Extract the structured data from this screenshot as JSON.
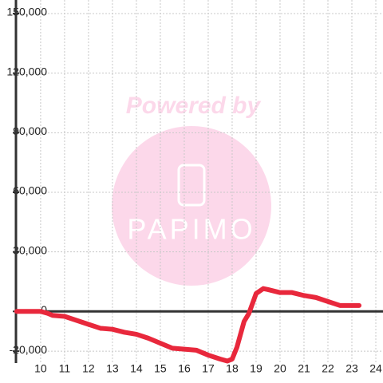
{
  "chart_data": {
    "type": "line",
    "watermark": {
      "line1": "Powered by",
      "line2": "PAPIMO"
    },
    "x": [
      9.0,
      10.0,
      10.3,
      10.5,
      11.0,
      11.5,
      12.0,
      12.5,
      13.0,
      13.5,
      14.0,
      14.5,
      15.0,
      15.5,
      16.0,
      16.5,
      17.0,
      17.5,
      17.8,
      18.0,
      18.2,
      18.5,
      18.7,
      19.0,
      19.3,
      19.5,
      20.0,
      20.5,
      21.0,
      21.5,
      22.0,
      22.5,
      23.0,
      23.3
    ],
    "series": [
      {
        "color": "#e8283c",
        "values": [
          0,
          0,
          -1000,
          -2000,
          -2500,
          -4500,
          -6500,
          -8500,
          -9000,
          -10500,
          -11500,
          -13500,
          -16000,
          -18500,
          -19000,
          -19500,
          -22000,
          -24000,
          -25000,
          -24000,
          -18000,
          -5000,
          -1000,
          9000,
          11500,
          11000,
          9500,
          9500,
          8000,
          7000,
          5000,
          3000,
          3000,
          3000
        ]
      }
    ],
    "xlim": [
      8.97,
      24.3
    ],
    "xticks": [
      10,
      11,
      12,
      13,
      14,
      15,
      16,
      17,
      18,
      19,
      20,
      21,
      22,
      23,
      24
    ],
    "ylim": [
      -26000,
      150000
    ],
    "yticks": [
      {
        "value": -20000,
        "label": "-20,000"
      },
      0,
      {
        "value": 30000,
        "label": "30,000"
      },
      {
        "value": 60000,
        "label": "60,000"
      },
      {
        "value": 90000,
        "label": "90,000"
      },
      {
        "value": 120000,
        "label": "120,000"
      },
      {
        "value": 150000,
        "label": "150,000"
      }
    ],
    "grid": true
  }
}
